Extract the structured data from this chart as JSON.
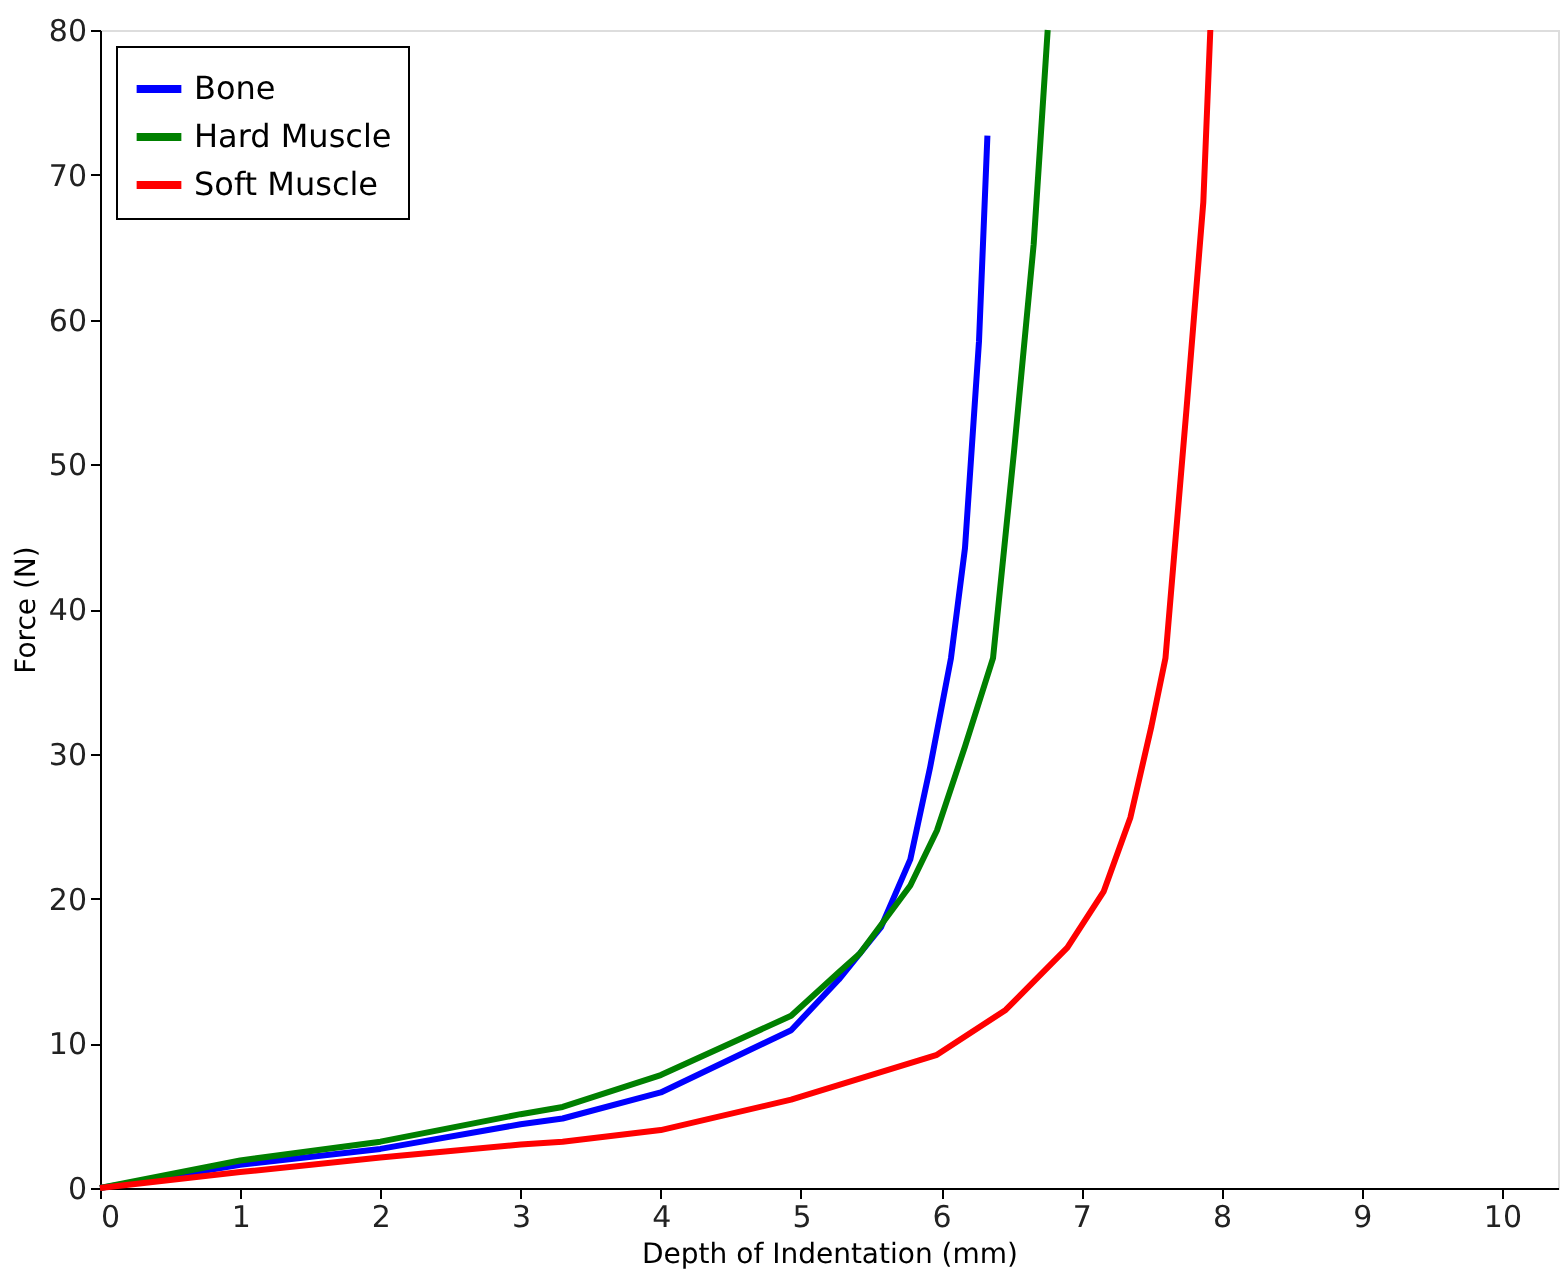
{
  "chart_data": {
    "type": "line",
    "xlabel": "Depth of Indentation (mm)",
    "ylabel": "Force (N)",
    "xlim": [
      0,
      10.4
    ],
    "xticks": [
      0,
      1,
      2,
      3,
      4,
      5,
      6,
      7,
      8,
      9,
      10
    ],
    "ylim": [
      0,
      80
    ],
    "yticks": [
      0,
      10,
      20,
      30,
      40,
      50,
      60,
      70,
      80
    ],
    "grid": false,
    "legend": "top left",
    "marker": "none",
    "line_style": "solid",
    "series": [
      {
        "name": "Bone",
        "color": "#0000ff",
        "x": [
          0,
          1,
          2,
          3,
          3.3,
          4,
          4.93,
          5.27,
          5.57,
          5.78,
          5.92,
          6.07,
          6.17,
          6.27,
          6.33
        ],
        "values": [
          0,
          1.6,
          2.7,
          4.4,
          4.8,
          6.6,
          10.9,
          14.4,
          18,
          22.7,
          29,
          36.6,
          44.2,
          58.5,
          72.7
        ]
      },
      {
        "name": "Hard Muscle",
        "color": "#008000",
        "x": [
          0,
          1,
          2,
          3,
          3.3,
          4,
          4.93,
          5.27,
          5.42,
          5.78,
          5.97,
          6.17,
          6.37,
          6.52,
          6.66,
          6.76
        ],
        "values": [
          0,
          1.9,
          3.2,
          5.1,
          5.6,
          7.8,
          11.9,
          14.9,
          16.2,
          20.9,
          24.7,
          30.5,
          36.6,
          50.9,
          65.2,
          80
        ]
      },
      {
        "name": "Soft Muscle",
        "color": "#ff0000",
        "x": [
          0,
          1,
          2,
          3,
          3.3,
          4,
          4.93,
          5.97,
          6.46,
          6.9,
          7.16,
          7.35,
          7.5,
          7.6,
          7.75,
          7.87,
          7.92
        ],
        "values": [
          0,
          1.1,
          2.1,
          3.0,
          3.2,
          4.0,
          6.1,
          9.2,
          12.3,
          16.6,
          20.5,
          25.6,
          31.9,
          36.6,
          53.8,
          68.1,
          80
        ]
      }
    ]
  }
}
